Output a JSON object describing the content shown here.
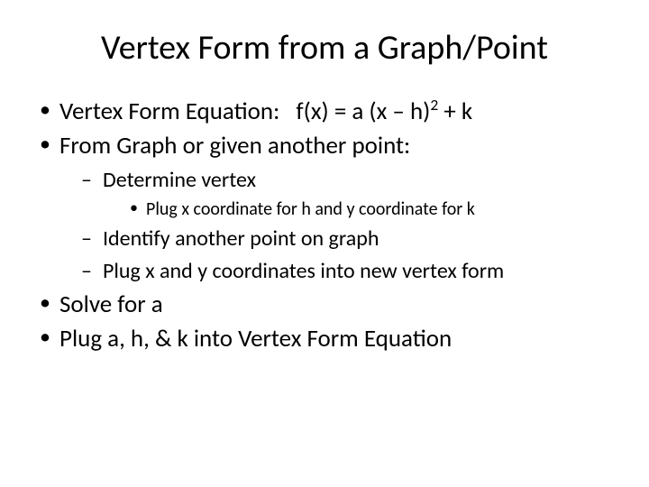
{
  "background_color": "#ffffff",
  "text_color": "#000000",
  "font_family": "Calibri",
  "title": {
    "text": "Vertex Form from a Graph/Point",
    "fontsize": 38,
    "weight": "normal",
    "align": "center"
  },
  "bullets": {
    "level1_marker": "•",
    "level2_marker": "–",
    "level3_marker": "•",
    "level1_fontsize": 27,
    "level2_fontsize": 24,
    "level3_fontsize": 20,
    "items": [
      {
        "label_prefix": "Vertex Form Equation:",
        "equation_lhs": "f(x) = a (x – h)",
        "equation_exp": "2",
        "equation_rhs": " + k",
        "children": []
      },
      {
        "label": "From Graph or given another point:",
        "children": [
          {
            "label": " Determine vertex",
            "children": [
              {
                "label": "Plug x coordinate for h and y coordinate for k"
              }
            ]
          },
          {
            "label": "Identify another point on graph",
            "children": []
          },
          {
            "label": "Plug x and y coordinates into new vertex form",
            "children": []
          }
        ]
      },
      {
        "label": "Solve for a",
        "children": []
      },
      {
        "label": "Plug a, h, & k into Vertex Form Equation",
        "children": []
      }
    ]
  }
}
